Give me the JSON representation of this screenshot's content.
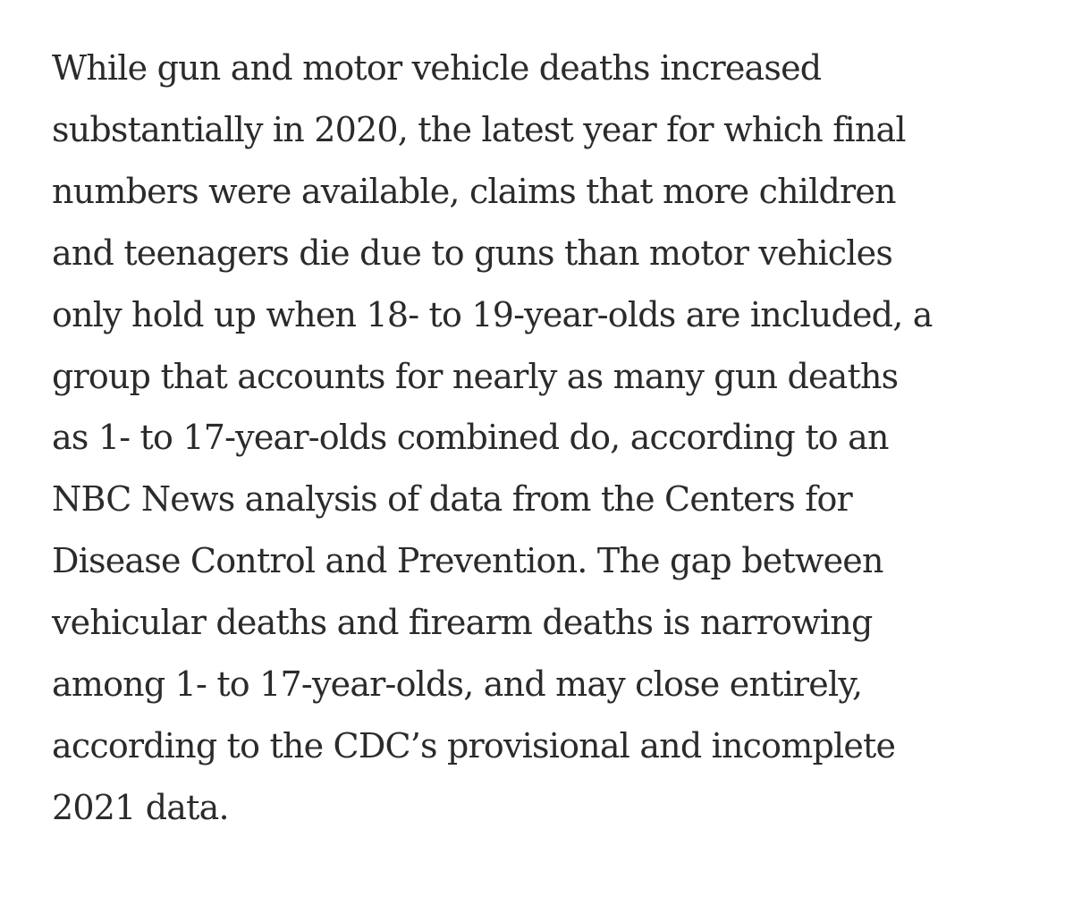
{
  "article": {
    "lines": [
      "While gun and motor vehicle deaths increased",
      "substantially in 2020, the latest year for which final",
      "numbers were available, claims that more children",
      "and teenagers die due to guns than motor vehicles",
      "only hold up when 18- to 19-year-olds are included, a",
      "group that accounts for nearly as many gun deaths",
      "as 1- to 17-year-olds combined do, according to an",
      "NBC News analysis of data from the Centers for",
      "Disease Control and Prevention. The gap between",
      "vehicular deaths and firearm deaths is narrowing",
      "among 1- to 17-year-olds, and may close entirely,",
      "according to the CDC’s provisional and incomplete",
      "2021 data."
    ]
  }
}
